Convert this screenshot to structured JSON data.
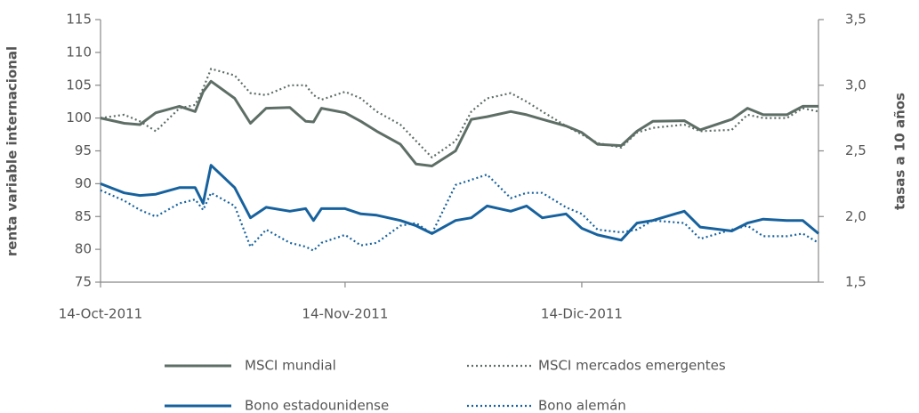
{
  "chart_data": {
    "type": "line",
    "y_label": "renta variable internacional",
    "y2_label": "tasas a 10 años",
    "x": [
      "2011-10-14",
      "2011-10-17",
      "2011-10-19",
      "2011-10-21",
      "2011-10-24",
      "2011-10-26",
      "2011-10-27",
      "2011-10-28",
      "2011-10-31",
      "2011-11-02",
      "2011-11-04",
      "2011-11-07",
      "2011-11-09",
      "2011-11-10",
      "2011-11-11",
      "2011-11-14",
      "2011-11-16",
      "2011-11-18",
      "2011-11-21",
      "2011-11-23",
      "2011-11-25",
      "2011-11-28",
      "2011-11-30",
      "2011-12-02",
      "2011-12-05",
      "2011-12-07",
      "2011-12-09",
      "2011-12-12",
      "2011-12-14",
      "2011-12-16",
      "2011-12-19",
      "2011-12-21",
      "2011-12-23",
      "2011-12-27",
      "2011-12-29",
      "2012-01-02",
      "2012-01-04",
      "2012-01-06",
      "2012-01-09",
      "2012-01-11",
      "2012-01-13"
    ],
    "xlim": [
      "2011-10-14",
      "2012-01-13"
    ],
    "xticks": [
      {
        "value": "2011-10-14",
        "label": "14-Oct-2011"
      },
      {
        "value": "2011-11-14",
        "label": "14-Nov-2011"
      },
      {
        "value": "2011-12-14",
        "label": "14-Dic-2011"
      }
    ],
    "ylim": [
      75,
      115
    ],
    "yticks": [
      75,
      80,
      85,
      90,
      95,
      100,
      105,
      110,
      115
    ],
    "y2lim": [
      1.5,
      3.5
    ],
    "y2ticks": [
      {
        "value": 1.5,
        "label": "1,5"
      },
      {
        "value": 2.0,
        "label": "2,0"
      },
      {
        "value": 2.5,
        "label": "2,5"
      },
      {
        "value": 3.0,
        "label": "3,0"
      },
      {
        "value": 3.5,
        "label": "3,5"
      }
    ],
    "series": [
      {
        "name": "MSCI mundial",
        "color": "#5e6e67",
        "dash": false,
        "values": [
          100,
          99.2,
          99,
          100.8,
          101.8,
          101,
          104,
          105.6,
          103,
          99.2,
          101.5,
          101.6,
          99.5,
          99.4,
          101.5,
          100.8,
          99.5,
          98,
          96,
          93,
          92.7,
          95,
          99.8,
          100.2,
          101,
          100.5,
          99.8,
          98.8,
          97.8,
          96,
          95.8,
          98,
          99.5,
          99.6,
          98.2,
          99.8,
          101.5,
          100.5,
          100.5,
          101.8,
          101.8
        ]
      },
      {
        "name": "MSCI mercados emergentes",
        "color": "#5e6e67",
        "dash": true,
        "values": [
          100,
          100.5,
          99.5,
          98,
          101.5,
          102,
          104.5,
          107.5,
          106.5,
          103.8,
          103.5,
          105,
          105,
          103.5,
          102.8,
          104,
          103,
          101,
          99,
          96.5,
          94,
          96.5,
          101,
          103,
          103.8,
          102.5,
          101,
          98.8,
          97.5,
          96.2,
          95.5,
          97.8,
          98.5,
          99,
          98,
          98.2,
          100.5,
          100,
          100,
          101.5,
          101
        ]
      },
      {
        "name": "Bono estadounidense",
        "color": "#17629e",
        "dash": false,
        "axis": "y2",
        "values": [
          2.25,
          2.18,
          2.16,
          2.17,
          2.22,
          2.22,
          2.1,
          2.39,
          2.22,
          1.99,
          2.07,
          2.04,
          2.06,
          1.97,
          2.06,
          2.06,
          2.02,
          2.01,
          1.97,
          1.93,
          1.87,
          1.97,
          1.99,
          2.08,
          2.04,
          2.08,
          1.99,
          2.02,
          1.91,
          1.86,
          1.82,
          1.95,
          1.97,
          2.04,
          1.92,
          1.89,
          1.95,
          1.98,
          1.97,
          1.97,
          1.87
        ]
      },
      {
        "name": "Bono alemán",
        "color": "#17629e",
        "dash": true,
        "axis": "y2",
        "values": [
          2.2,
          2.12,
          2.05,
          2.0,
          2.1,
          2.13,
          2.05,
          2.18,
          2.08,
          1.77,
          1.9,
          1.8,
          1.77,
          1.74,
          1.8,
          1.86,
          1.78,
          1.8,
          1.93,
          1.95,
          1.87,
          2.24,
          2.28,
          2.32,
          2.14,
          2.18,
          2.18,
          2.07,
          2.02,
          1.9,
          1.88,
          1.9,
          1.97,
          1.95,
          1.83,
          1.9,
          1.93,
          1.85,
          1.85,
          1.87,
          1.8
        ]
      }
    ]
  }
}
